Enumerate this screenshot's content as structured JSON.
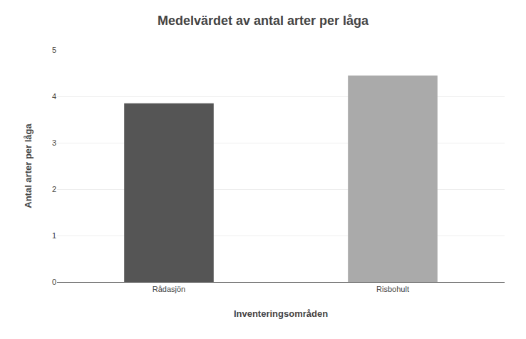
{
  "chart_data": {
    "type": "bar",
    "title": "Medelvärdet av antal arter per låga",
    "xlabel": "Inventeringsområden",
    "ylabel": "Antal arter per låga",
    "categories": [
      "Rådasjön",
      "Risbohult"
    ],
    "values": [
      3.85,
      4.45
    ],
    "colors": [
      "#555555",
      "#aaaaaa"
    ],
    "ylim": [
      0,
      5
    ],
    "yticks": [
      0,
      1,
      2,
      3,
      4,
      5
    ],
    "grid": true
  }
}
